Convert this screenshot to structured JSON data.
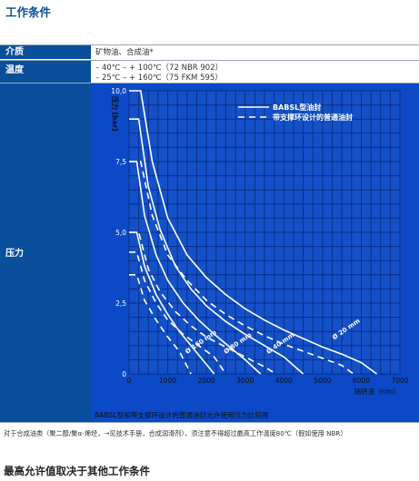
{
  "page_title": "工作条件",
  "rows": {
    "medium": {
      "label": "介质",
      "value": "矿物油、合成油*"
    },
    "temperature": {
      "label": "温度",
      "lines": [
        "– 40℃ – + 100℃（72 NBR 902）",
        "– 25℃ – + 160℃（75 FKM 595）"
      ]
    },
    "pressure": {
      "label": "压力"
    }
  },
  "chart_caption": "BABSL型和带支撑环设计的普通油封允许使用压力比较图",
  "footnote": "对于合成油类（聚二醇/聚α-烯烃，→见技术手册，合成润滑剂），须注意不得超过最高工作温度80℃（假如使用 NBR）",
  "bottom_title": "最高允许值取决于其他工作条件",
  "colors": {
    "brand_blue": "#0a4f9c",
    "chart_blue": "#0b49c6",
    "grid": "#0a2f86",
    "plot_bg": "#c9d3e0"
  },
  "chart_data": {
    "type": "line",
    "xlabel": "轴转速（r/m）",
    "ylabel": "压力 [bar]",
    "xlim": [
      0,
      7000
    ],
    "ylim": [
      0,
      10
    ],
    "x_ticks": [
      0,
      1000,
      2000,
      3000,
      4000,
      5000,
      6000,
      7000
    ],
    "y_ticks": [
      0,
      2.5,
      5.0,
      7.5,
      10.0
    ],
    "y_tick_labels": [
      "0",
      "2,5",
      "5,0",
      "7,5",
      "10,0"
    ],
    "legend": [
      "BABSL型油封",
      "带支撑环设计的普通油封"
    ],
    "legend_position": "top-right",
    "series": [
      {
        "label": "Ø 20 mm",
        "style": "solid",
        "points": [
          [
            0,
            10
          ],
          [
            300,
            10
          ],
          [
            600,
            7.5
          ],
          [
            1000,
            5.5
          ],
          [
            1500,
            4.2
          ],
          [
            2000,
            3.4
          ],
          [
            2500,
            2.8
          ],
          [
            3000,
            2.3
          ],
          [
            3500,
            1.9
          ],
          [
            4000,
            1.55
          ],
          [
            4500,
            1.25
          ],
          [
            5000,
            0.95
          ],
          [
            5500,
            0.7
          ],
          [
            6000,
            0.4
          ],
          [
            6400,
            0
          ]
        ]
      },
      {
        "label": "Ø 20 mm",
        "style": "dashed",
        "points": [
          [
            0,
            7.5
          ],
          [
            300,
            7.5
          ],
          [
            600,
            5.6
          ],
          [
            1000,
            4.2
          ],
          [
            1500,
            3.3
          ],
          [
            2000,
            2.6
          ],
          [
            2500,
            2.1
          ],
          [
            3000,
            1.7
          ],
          [
            3500,
            1.35
          ],
          [
            4000,
            1.05
          ],
          [
            4500,
            0.8
          ],
          [
            5000,
            0.55
          ],
          [
            5500,
            0.3
          ],
          [
            5800,
            0
          ]
        ]
      },
      {
        "label": "Ø 40 mm",
        "style": "solid",
        "points": [
          [
            0,
            9
          ],
          [
            250,
            9
          ],
          [
            500,
            6.6
          ],
          [
            800,
            5.1
          ],
          [
            1200,
            3.8
          ],
          [
            1600,
            3.0
          ],
          [
            2000,
            2.4
          ],
          [
            2500,
            1.85
          ],
          [
            3000,
            1.4
          ],
          [
            3500,
            1.0
          ],
          [
            4000,
            0.6
          ],
          [
            4500,
            0
          ]
        ]
      },
      {
        "label": "Ø 40 mm",
        "style": "dashed",
        "points": [
          [
            0,
            5
          ],
          [
            250,
            5
          ],
          [
            500,
            3.7
          ],
          [
            800,
            2.9
          ],
          [
            1200,
            2.2
          ],
          [
            1600,
            1.7
          ],
          [
            2000,
            1.3
          ],
          [
            2500,
            0.95
          ],
          [
            3000,
            0.6
          ],
          [
            3500,
            0.25
          ],
          [
            3800,
            0
          ]
        ]
      },
      {
        "label": "Ø 80 mm",
        "style": "solid",
        "points": [
          [
            0,
            7.5
          ],
          [
            200,
            7.5
          ],
          [
            400,
            5.6
          ],
          [
            700,
            4.2
          ],
          [
            1000,
            3.3
          ],
          [
            1400,
            2.5
          ],
          [
            1800,
            1.9
          ],
          [
            2200,
            1.4
          ],
          [
            2600,
            0.95
          ],
          [
            3000,
            0.5
          ],
          [
            3400,
            0
          ]
        ]
      },
      {
        "label": "Ø 80 mm",
        "style": "dashed",
        "points": [
          [
            0,
            4.3
          ],
          [
            200,
            4.3
          ],
          [
            400,
            3.3
          ],
          [
            700,
            2.5
          ],
          [
            1000,
            1.9
          ],
          [
            1400,
            1.4
          ],
          [
            1800,
            1.0
          ],
          [
            2200,
            0.6
          ],
          [
            2500,
            0
          ]
        ]
      },
      {
        "label": "Ø 160 mm",
        "style": "solid",
        "points": [
          [
            0,
            5
          ],
          [
            200,
            5
          ],
          [
            400,
            3.8
          ],
          [
            700,
            2.8
          ],
          [
            1000,
            2.1
          ],
          [
            1300,
            1.5
          ],
          [
            1600,
            1.0
          ],
          [
            1900,
            0.5
          ],
          [
            2200,
            0
          ]
        ]
      },
      {
        "label": "Ø 160 mm",
        "style": "dashed",
        "points": [
          [
            0,
            3.5
          ],
          [
            200,
            3.5
          ],
          [
            400,
            2.6
          ],
          [
            700,
            1.9
          ],
          [
            1000,
            1.3
          ],
          [
            1300,
            0.8
          ],
          [
            1600,
            0
          ]
        ]
      }
    ],
    "annotations": [
      {
        "text": "Ø 160 mm",
        "x": 1500,
        "y": 0.7
      },
      {
        "text": "Ø 80 mm",
        "x": 2500,
        "y": 0.7
      },
      {
        "text": "Ø 40 mm",
        "x": 3600,
        "y": 0.7
      },
      {
        "text": "Ø 20 mm",
        "x": 5300,
        "y": 1.2
      }
    ]
  }
}
